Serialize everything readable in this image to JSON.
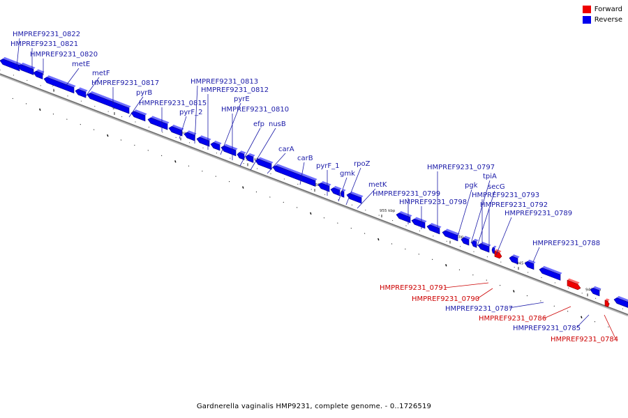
{
  "legend": {
    "forward": "Forward",
    "reverse": "Reverse"
  },
  "colors": {
    "forward": "#ee0000",
    "reverse": "#0000ee",
    "forward_label": "#cc0000",
    "reverse_label": "#1a1aa8"
  },
  "caption": "Gardnerella vaginalis HMP9231, complete genome. - 0..1726519",
  "tick_labels": [
    "980 kbp",
    "975 kbp",
    "970 kbp",
    "965 kbp",
    "960 kbp",
    "955 kbp",
    "950 kbp",
    "945 kbp",
    "940 kbp"
  ],
  "genes": [
    {
      "name": "HMPREF9231_0822",
      "strand": "reverse"
    },
    {
      "name": "HMPREF9231_0821",
      "strand": "reverse"
    },
    {
      "name": "HMPREF9231_0820",
      "strand": "reverse"
    },
    {
      "name": "metE",
      "strand": "reverse"
    },
    {
      "name": "metF",
      "strand": "reverse"
    },
    {
      "name": "HMPREF9231_0817",
      "strand": "reverse"
    },
    {
      "name": "pyrB",
      "strand": "reverse"
    },
    {
      "name": "HMPREF9231_0815",
      "strand": "reverse"
    },
    {
      "name": "pyrF_2",
      "strand": "reverse"
    },
    {
      "name": "HMPREF9231_0813",
      "strand": "reverse"
    },
    {
      "name": "HMPREF9231_0812",
      "strand": "reverse"
    },
    {
      "name": "pyrE",
      "strand": "reverse"
    },
    {
      "name": "HMPREF9231_0810",
      "strand": "reverse"
    },
    {
      "name": "efp",
      "strand": "reverse"
    },
    {
      "name": "nusB",
      "strand": "reverse"
    },
    {
      "name": "carA",
      "strand": "reverse"
    },
    {
      "name": "carB",
      "strand": "reverse"
    },
    {
      "name": "pyrF_1",
      "strand": "reverse"
    },
    {
      "name": "gmk",
      "strand": "reverse"
    },
    {
      "name": "rpoZ",
      "strand": "reverse"
    },
    {
      "name": "metK",
      "strand": "reverse"
    },
    {
      "name": "HMPREF9231_0799",
      "strand": "reverse"
    },
    {
      "name": "HMPREF9231_0798",
      "strand": "reverse"
    },
    {
      "name": "HMPREF9231_0797",
      "strand": "reverse"
    },
    {
      "name": "pgk",
      "strand": "reverse"
    },
    {
      "name": "tpiA",
      "strand": "reverse"
    },
    {
      "name": "secG",
      "strand": "reverse"
    },
    {
      "name": "HMPREF9231_0793",
      "strand": "reverse"
    },
    {
      "name": "HMPREF9231_0792",
      "strand": "reverse"
    },
    {
      "name": "HMPREF9231_0789",
      "strand": "reverse"
    },
    {
      "name": "HMPREF9231_0788",
      "strand": "reverse"
    },
    {
      "name": "HMPREF9231_0791",
      "strand": "forward"
    },
    {
      "name": "HMPREF9231_0790",
      "strand": "forward"
    },
    {
      "name": "HMPREF9231_0787",
      "strand": "reverse"
    },
    {
      "name": "HMPREF9231_0786",
      "strand": "forward"
    },
    {
      "name": "HMPREF9231_0785",
      "strand": "reverse"
    },
    {
      "name": "HMPREF9231_0784",
      "strand": "forward"
    }
  ]
}
